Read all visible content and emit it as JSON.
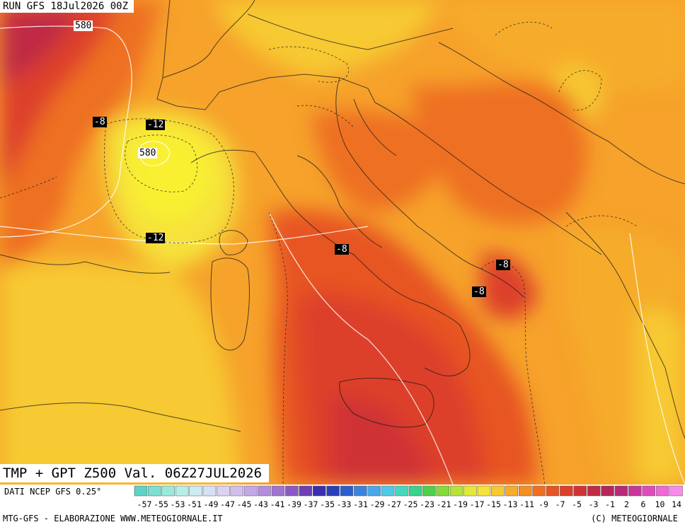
{
  "run_label": "RUN GFS 18Jul2026 00Z",
  "title": "TMP + GPT Z500 Val. 06Z27JUL2026",
  "source": "DATI NCEP GFS 0.25°",
  "footer_left": "MTG-GFS - ELABORAZIONE WWW.METEOGIORNALE.IT",
  "footer_right": "(C) METEOGIORNALE",
  "isotherm_labels": [
    "-8",
    "-12",
    "-12",
    "-8",
    "-8",
    "-8"
  ],
  "gpt_labels": [
    "580",
    "580"
  ],
  "legend": {
    "ticks": [
      "-57",
      "-55",
      "-53",
      "-51",
      "-49",
      "-47",
      "-45",
      "-43",
      "-41",
      "-39",
      "-37",
      "-35",
      "-33",
      "-31",
      "-29",
      "-27",
      "-25",
      "-23",
      "-21",
      "-19",
      "-17",
      "-15",
      "-13",
      "-11",
      "-9",
      "-7",
      "-5",
      "-3",
      "-1",
      "2",
      "6",
      "10",
      "14"
    ],
    "colors": [
      "#5fd3c6",
      "#7ddfd0",
      "#9be9dc",
      "#b7efe6",
      "#cdebf3",
      "#d8e0f6",
      "#dcd2f3",
      "#d2bfee",
      "#c4a8e6",
      "#b28fdd",
      "#9f74d1",
      "#8a59c4",
      "#6f3fb4",
      "#3a2fae",
      "#2a40b9",
      "#2c5fce",
      "#3b84de",
      "#4aa8ea",
      "#50c8e8",
      "#46d7c0",
      "#39d28e",
      "#4fd04a",
      "#84d93b",
      "#b6e23a",
      "#e1ea3b",
      "#f6e23a",
      "#f7c933",
      "#f6ac2b",
      "#f38f25",
      "#ee6f22",
      "#e75423",
      "#dd3f2a",
      "#cf3335",
      "#c02c45",
      "#b5275a",
      "#b62a78",
      "#c8379b",
      "#de4cbc",
      "#ef68d6",
      "#f78be7"
    ]
  }
}
